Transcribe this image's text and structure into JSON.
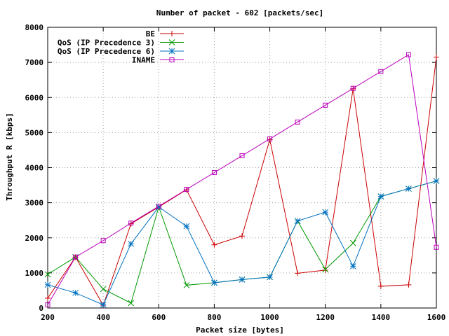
{
  "chart_data": {
    "type": "line",
    "title": "Number of packet - 602 [packets/sec]",
    "xlabel": "Packet size [bytes]",
    "ylabel": "Throughput R [kbps]",
    "xlim": [
      200,
      1600
    ],
    "ylim": [
      0,
      8000
    ],
    "xticks": [
      200,
      400,
      600,
      800,
      1000,
      1200,
      1400,
      1600
    ],
    "yticks": [
      0,
      1000,
      2000,
      3000,
      4000,
      5000,
      6000,
      7000,
      8000
    ],
    "grid": true,
    "legend_position": "top-left",
    "x": [
      200,
      300,
      400,
      500,
      600,
      700,
      800,
      900,
      1000,
      1100,
      1200,
      1300,
      1400,
      1500,
      1600
    ],
    "series": [
      {
        "name": "BE",
        "color": "#cc0000",
        "marker": "plus",
        "values": [
          280,
          1450,
          80,
          2400,
          2880,
          3370,
          1800,
          2050,
          4800,
          990,
          1080,
          6250,
          620,
          660,
          7150
        ]
      },
      {
        "name": "QoS (IP Precedence 3)",
        "color": "#009900",
        "marker": "cross",
        "values": [
          960,
          1450,
          540,
          140,
          2880,
          650,
          720,
          810,
          880,
          2480,
          1100,
          1850,
          3180,
          3400,
          3620
        ]
      },
      {
        "name": "QoS (IP Precedence 6)",
        "color": "#0070c0",
        "marker": "star",
        "values": [
          660,
          430,
          90,
          1830,
          2880,
          2330,
          720,
          810,
          880,
          2480,
          2730,
          1190,
          3180,
          3400,
          3620
        ]
      },
      {
        "name": "INAME",
        "color": "#bb00bb",
        "marker": "square",
        "values": [
          90,
          1450,
          1920,
          2420,
          2900,
          3380,
          3860,
          4340,
          4820,
          5300,
          5780,
          6260,
          6740,
          7220,
          1730
        ]
      }
    ]
  }
}
